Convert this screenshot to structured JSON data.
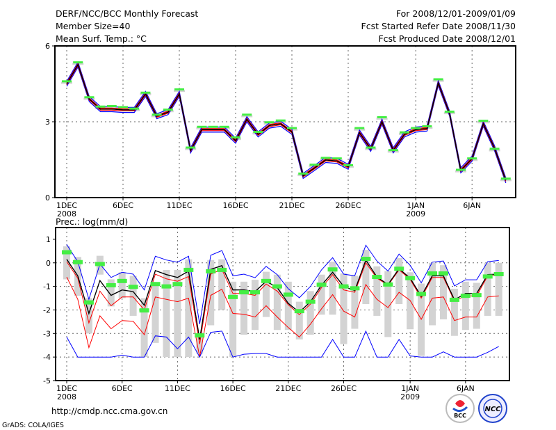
{
  "header": {
    "title": "DERF/NCC/BCC Monthly Forecast",
    "member_size": "Member Size=40",
    "variable_top": "Mean Surf. Temp.: °C",
    "period": "For 2008/12/01-2009/01/09",
    "start_date": "Fcst Started Refer Date 2008/11/30",
    "produced_date": "Fcst Produced Date 2008/12/01"
  },
  "footer": {
    "url": "http://cmdp.ncc.cma.gov.cn",
    "credit": "GrADS: COLA/IGES",
    "logo_bcc": "BCC",
    "logo_ncc": "NCC"
  },
  "colors": {
    "mean": "#000000",
    "inner": "#ff0000",
    "outer": "#0000ff",
    "obs": "#44ee44",
    "spread": "#d3d3d3"
  },
  "chart_data": [
    {
      "type": "line",
      "title": "Mean Surf. Temp.: °C",
      "ylabel": "°C",
      "ylim": [
        0,
        6
      ],
      "yticks": [
        "0",
        "3",
        "6"
      ],
      "ytick_values": [
        0,
        3,
        6
      ],
      "xticks": [
        {
          "day": 1,
          "label": "1DEC",
          "sub": "2008"
        },
        {
          "day": 6,
          "label": "6DEC"
        },
        {
          "day": 11,
          "label": "11DEC"
        },
        {
          "day": 16,
          "label": "16DEC"
        },
        {
          "day": 21,
          "label": "21DEC"
        },
        {
          "day": 26,
          "label": "26DEC"
        },
        {
          "day": 32,
          "label": "1JAN",
          "sub": "2009"
        },
        {
          "day": 37,
          "label": "6JAN"
        }
      ],
      "band_offsets": {
        "inner": 0.04,
        "outer": 0.1
      },
      "series": [
        {
          "name": "ensemble mean",
          "values": [
            4.5,
            5.26,
            3.9,
            3.5,
            3.5,
            3.47,
            3.47,
            4.1,
            3.22,
            3.38,
            4.1,
            1.87,
            2.69,
            2.69,
            2.69,
            2.25,
            3.1,
            2.5,
            2.85,
            2.92,
            2.6,
            0.86,
            1.17,
            1.49,
            1.45,
            1.22,
            2.57,
            1.93,
            3.0,
            1.87,
            2.5,
            2.69,
            2.73,
            4.53,
            3.33,
            1.08,
            1.54,
            2.92,
            1.95,
            0.68
          ]
        },
        {
          "name": "observation",
          "values": [
            4.6,
            5.35,
            3.97,
            3.6,
            3.62,
            3.58,
            3.52,
            4.15,
            3.28,
            3.48,
            4.28,
            1.98,
            2.8,
            2.8,
            2.8,
            2.38,
            3.28,
            2.6,
            2.98,
            3.05,
            2.75,
            0.95,
            1.3,
            1.57,
            1.55,
            1.28,
            2.75,
            1.98,
            3.18,
            1.88,
            2.58,
            2.75,
            2.82,
            4.68,
            3.4,
            1.1,
            1.55,
            3.04,
            1.93,
            0.75
          ]
        }
      ]
    },
    {
      "type": "line",
      "title": "Prec.: log(mm/d)",
      "ylabel": "log(mm/d)",
      "ylim": [
        -5,
        1.5
      ],
      "yticks": [
        "1",
        "0",
        "-1",
        "-2",
        "-3",
        "-4",
        "-5"
      ],
      "ytick_values": [
        1,
        0,
        -1,
        -2,
        -3,
        -4,
        -5
      ],
      "xticks": [
        {
          "day": 1,
          "label": "1DEC",
          "sub": "2008"
        },
        {
          "day": 6,
          "label": "6DEC"
        },
        {
          "day": 11,
          "label": "11DEC"
        },
        {
          "day": 16,
          "label": "16DEC"
        },
        {
          "day": 21,
          "label": "21DEC"
        },
        {
          "day": 26,
          "label": "26DEC"
        },
        {
          "day": 32,
          "label": "1JAN",
          "sub": "2009"
        },
        {
          "day": 37,
          "label": "6JAN"
        }
      ],
      "series": [
        {
          "name": "max",
          "color": "outer",
          "values": [
            0.78,
            0.05,
            -1.55,
            -0.05,
            -0.62,
            -0.4,
            -0.48,
            -1.15,
            0.28,
            0.12,
            0.03,
            0.28,
            -2.6,
            0.32,
            0.52,
            -0.55,
            -0.48,
            -0.63,
            -0.15,
            -0.5,
            -1.1,
            -1.48,
            -1.0,
            -0.3,
            0.22,
            -0.48,
            -0.55,
            0.75,
            0.08,
            -0.35,
            0.37,
            -0.1,
            -0.85,
            0.03,
            0.08,
            -0.98,
            -0.72,
            -0.72,
            0.05,
            0.1
          ]
        },
        {
          "name": "upper",
          "color": "inner",
          "values": [
            0.05,
            -0.65,
            -2.55,
            -1.2,
            -1.82,
            -1.45,
            -1.45,
            -2.0,
            -0.48,
            -0.68,
            -0.78,
            -0.58,
            -3.45,
            -0.48,
            -0.28,
            -1.3,
            -1.3,
            -1.38,
            -0.9,
            -1.2,
            -1.78,
            -2.2,
            -1.75,
            -1.05,
            -0.5,
            -1.15,
            -1.25,
            0.0,
            -0.65,
            -0.95,
            -0.3,
            -0.7,
            -1.5,
            -0.62,
            -0.62,
            -1.62,
            -1.4,
            -1.4,
            -0.56,
            -0.52
          ]
        },
        {
          "name": "mean",
          "color": "mean",
          "values": [
            0.15,
            -0.55,
            -2.15,
            -0.75,
            -1.38,
            -1.15,
            -1.22,
            -1.8,
            -0.33,
            -0.5,
            -0.62,
            -0.35,
            -3.25,
            -0.28,
            -0.12,
            -1.15,
            -1.15,
            -1.22,
            -0.78,
            -1.05,
            -1.72,
            -2.1,
            -1.65,
            -0.95,
            -0.4,
            -1.0,
            -1.18,
            0.12,
            -0.6,
            -0.92,
            -0.25,
            -0.65,
            -1.42,
            -0.55,
            -0.55,
            -1.57,
            -1.3,
            -1.3,
            -0.5,
            -0.48
          ]
        },
        {
          "name": "lower",
          "color": "inner",
          "values": [
            -0.6,
            -1.55,
            -3.6,
            -2.25,
            -2.8,
            -2.45,
            -2.48,
            -3.05,
            -1.45,
            -1.55,
            -1.65,
            -1.5,
            -4.0,
            -1.38,
            -1.12,
            -2.15,
            -2.18,
            -2.3,
            -1.82,
            -2.3,
            -2.75,
            -3.15,
            -2.6,
            -1.95,
            -1.35,
            -2.05,
            -2.3,
            -0.92,
            -1.55,
            -1.9,
            -1.25,
            -1.6,
            -2.4,
            -1.5,
            -1.45,
            -2.45,
            -2.3,
            -2.3,
            -1.45,
            -1.4
          ]
        },
        {
          "name": "min",
          "color": "outer",
          "values": [
            -3.15,
            -4,
            -4,
            -4,
            -4,
            -3.92,
            -4,
            -4,
            -3.1,
            -3.15,
            -3.65,
            -3.15,
            -4,
            -2.95,
            -2.9,
            -4,
            -3.88,
            -3.85,
            -3.85,
            -4,
            -4,
            -4,
            -4,
            -4,
            -3.25,
            -4,
            -4,
            -2.9,
            -4,
            -4,
            -3.25,
            -3.95,
            -4,
            -4,
            -3.78,
            -4,
            -4,
            -4,
            -3.8,
            -3.55
          ]
        },
        {
          "name": "observation",
          "values": [
            0.45,
            0.03,
            -1.68,
            -0.05,
            -0.95,
            -0.77,
            -1.02,
            -2.02,
            -0.9,
            -1.0,
            -0.9,
            -0.3,
            -3.08,
            -0.36,
            -0.3,
            -1.45,
            -1.25,
            -1.25,
            -0.77,
            -1.0,
            -1.35,
            -2.05,
            -1.65,
            -0.93,
            -0.28,
            -1.0,
            -1.08,
            0.17,
            -0.6,
            -0.92,
            -0.25,
            -0.65,
            -1.32,
            -0.45,
            -0.45,
            -1.57,
            -1.4,
            -1.37,
            -0.58,
            -0.48
          ]
        }
      ],
      "spread_bars": {
        "high": [
          0.7,
          0.25,
          -1.5,
          0.3,
          -0.7,
          -0.4,
          -0.55,
          -1.5,
          -0.9,
          -0.3,
          -0.3,
          0.15,
          -3.0,
          0.12,
          0.15,
          -0.8,
          -0.8,
          -0.72,
          -0.38,
          -0.5,
          -0.8,
          -1.65,
          -1.2,
          -0.5,
          0.05,
          -0.45,
          -0.55,
          0.55,
          -0.15,
          -0.35,
          0.2,
          -0.4,
          -0.88,
          0.0,
          -0.1,
          -1.1,
          -0.8,
          -0.85,
          0.0,
          0.0
        ],
        "low": [
          -0.7,
          -1.4,
          -3.0,
          -0.5,
          -1.85,
          -1.5,
          -2.25,
          -4.0,
          -3.4,
          -4.0,
          -4.0,
          -4.0,
          -3.85,
          -2.65,
          -2.0,
          -4.0,
          -3.05,
          -2.85,
          -2.3,
          -2.85,
          -2.85,
          -3.25,
          -3.05,
          -2.2,
          -2.2,
          -3.45,
          -2.8,
          -1.75,
          -2.25,
          -3.15,
          -1.75,
          -2.82,
          -3.95,
          -2.65,
          -2.4,
          -3.1,
          -2.85,
          -2.8,
          -2.25,
          -2.25
        ]
      }
    }
  ]
}
